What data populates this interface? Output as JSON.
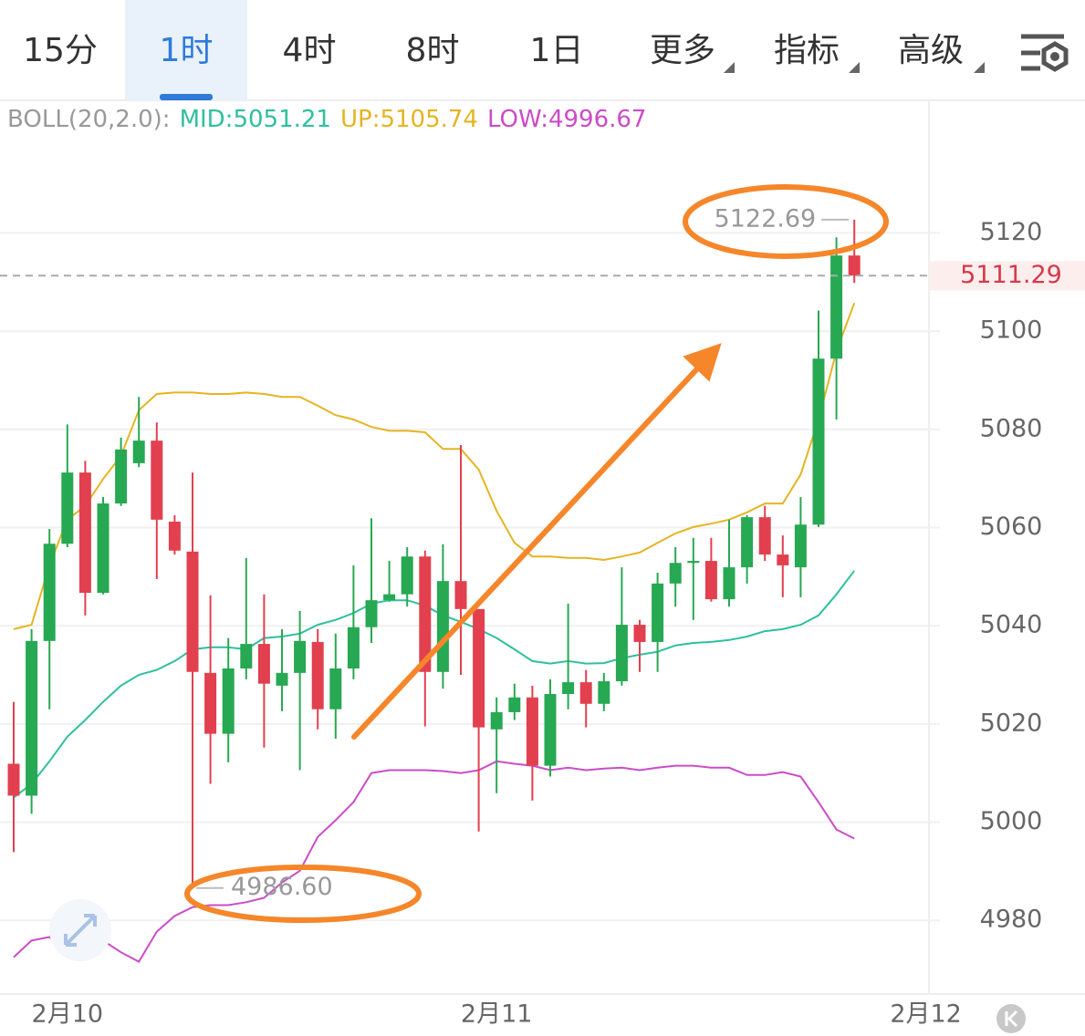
{
  "tabs": {
    "items": [
      "15分",
      "1时",
      "4时",
      "8时",
      "1日",
      "更多",
      "指标",
      "高级"
    ],
    "active": 1
  },
  "chart_data": {
    "type": "candlestick",
    "indicator": "BOLL(20,2.0):",
    "categories": [
      null,
      null,
      null,
      "2月10",
      null,
      null,
      null,
      null,
      null,
      null,
      null,
      null,
      null,
      null,
      null,
      null,
      null,
      null,
      null,
      null,
      null,
      null,
      null,
      null,
      null,
      null,
      null,
      "2月11",
      null,
      null,
      null,
      null,
      null,
      null,
      null,
      null,
      null,
      null,
      null,
      null,
      null,
      null,
      null,
      null,
      null,
      null,
      null,
      null,
      null,
      null,
      null,
      "2月12"
    ],
    "open": [
      5011.9,
      5005.4,
      5036.9,
      5056.7,
      5071.2,
      5046.7,
      5064.9,
      5073.1,
      5077.7,
      5061.2,
      5055.1,
      5030.4,
      5018,
      5031.3,
      5036.3,
      5027.8,
      5030.4,
      5036.7,
      5023,
      5031.3,
      5039.7,
      5045.2,
      5046.4,
      5054.1,
      5030.6,
      5049.1,
      5043.4,
      5018.9,
      5022.4,
      5025.4,
      5011.5,
      5026.1,
      5028.5,
      5024.1,
      5028.7,
      5040.2,
      5036.7,
      5048.6,
      5052.8,
      5053.2,
      5045.4,
      5051.9,
      5062.1,
      5054.5,
      5051.9,
      5060.6,
      5094.4,
      5115.4,
      null,
      null,
      null,
      null
    ],
    "high": [
      5024.5,
      5039.3,
      5059.7,
      5081,
      5073.6,
      5066.2,
      5078.3,
      5086.6,
      5081.4,
      5062.5,
      5071.2,
      5046.2,
      5037.5,
      5053.8,
      5046.4,
      5039.3,
      5043,
      5039.3,
      5038.4,
      5052.3,
      5061.9,
      5053.2,
      5056,
      5055.3,
      5056.6,
      5076.8,
      5043.4,
      5025.4,
      5028.2,
      5027.8,
      5029.1,
      5044.5,
      5031,
      5030.4,
      5051.9,
      5041.2,
      5050.8,
      5056,
      5057.9,
      5057.9,
      5061.6,
      5062.5,
      5064.4,
      5058.4,
      5066.2,
      5104.2,
      5119.1,
      5122.69,
      null,
      null,
      null,
      null
    ],
    "low": [
      4993.9,
      5001.7,
      5023,
      5056,
      5042.1,
      5046.4,
      5064.4,
      5072.3,
      5049.5,
      5054.5,
      4986.6,
      5007.8,
      5012.2,
      5029.1,
      5015.2,
      5022.6,
      5010.6,
      5018.9,
      5017,
      5029.1,
      5036.5,
      5044.9,
      5043.9,
      5019.5,
      5027.2,
      5030,
      4998.1,
      5005.9,
      5020.8,
      5004.4,
      5009.3,
      5023,
      5019.3,
      5022.6,
      5027.8,
      5030.6,
      5030.6,
      5043.9,
      5041.2,
      5044.9,
      5043.9,
      5048.6,
      5053.2,
      5045.8,
      5045.8,
      5060.1,
      5082,
      5109.8,
      null,
      null,
      null,
      null
    ],
    "close": [
      5005.4,
      5036.9,
      5056.7,
      5071.2,
      5046.7,
      5064.9,
      5075.9,
      5077.7,
      5061.6,
      5055.3,
      5030.6,
      5018,
      5031.3,
      5036.3,
      5028.2,
      5030.4,
      5036.9,
      5023,
      5031.3,
      5039.7,
      5045.2,
      5046.4,
      5054.1,
      5030.6,
      5049.1,
      5043.4,
      5019.3,
      5022.4,
      5025.4,
      5011.5,
      5026.1,
      5028.5,
      5024.1,
      5028.7,
      5040.2,
      5036.7,
      5048.6,
      5052.8,
      5053.2,
      5045.4,
      5051.9,
      5062.1,
      5054.5,
      5052.3,
      5060.6,
      5094.4,
      5115.4,
      5111.29,
      null,
      null,
      null,
      null
    ],
    "up_color": "#27a852",
    "down_color": "#e2404f",
    "series": [
      {
        "name": "MID:",
        "color": "#2fbf9f",
        "values": [
          5005,
          5007.8,
          5012.4,
          5017.4,
          5020.8,
          5024.5,
          5027.8,
          5030,
          5031,
          5032.8,
          5035.2,
          5035.6,
          5035.6,
          5035.2,
          5037.5,
          5037.8,
          5038.4,
          5040.2,
          5041.2,
          5042.6,
          5044.5,
          5045.2,
          5045.2,
          5044.1,
          5042.1,
          5040.8,
          5039.3,
          5037.5,
          5035.2,
          5032.8,
          5032.3,
          5032.8,
          5032.3,
          5032.4,
          5033.4,
          5034.1,
          5034.7,
          5036,
          5036.5,
          5036.7,
          5037.1,
          5037.8,
          5038.9,
          5039.3,
          5040.2,
          5042.1,
          5046.4,
          5051.21,
          null,
          null,
          null,
          null
        ]
      },
      {
        "name": "UP:",
        "color": "#e6b422",
        "values": [
          5039.3,
          5040.2,
          5052.3,
          5061.6,
          5064.4,
          5069.9,
          5074.6,
          5083.9,
          5087.2,
          5087.5,
          5087.5,
          5087.2,
          5087.2,
          5087.5,
          5087.2,
          5086.6,
          5086.6,
          5084.8,
          5082.9,
          5082,
          5080.5,
          5079.7,
          5079.7,
          5079.4,
          5076,
          5076,
          5071.8,
          5063.4,
          5056.9,
          5054.1,
          5054.1,
          5053.8,
          5053.8,
          5053.4,
          5054.1,
          5054.9,
          5056.9,
          5058.8,
          5060.1,
          5060.8,
          5061.6,
          5063.1,
          5064.9,
          5064.9,
          5070.8,
          5082,
          5095.9,
          5105.74,
          null,
          null,
          null,
          null
        ]
      },
      {
        "name": "LOW:",
        "color": "#cc4bc8",
        "values": [
          4972.5,
          4975.9,
          4976.6,
          4973.1,
          4974.4,
          4975.9,
          4973.5,
          4971.6,
          4977.7,
          4980.9,
          4982.7,
          4983.1,
          4983.1,
          4983.7,
          4984.6,
          4987.7,
          4990.1,
          4997,
          5000.4,
          5004.1,
          5010,
          5010.6,
          5010.6,
          5010.6,
          5010.4,
          5010,
          5010.6,
          5012.4,
          5011.9,
          5011.5,
          5010.6,
          5011.1,
          5010.6,
          5010.9,
          5011.1,
          5010.6,
          5011.1,
          5011.5,
          5011.5,
          5011.1,
          5011.1,
          5009.6,
          5009.6,
          5010.2,
          5009.3,
          5004.1,
          4998.5,
          4996.67,
          null,
          null,
          null,
          null
        ]
      }
    ],
    "ylim": [
      4965,
      5147
    ],
    "yticks": [
      4980,
      5000,
      5020,
      5040,
      5060,
      5080,
      5100,
      5120
    ],
    "grid": true,
    "annotations": [
      {
        "value": 5122.69,
        "label": "5122.69"
      },
      {
        "value": 4986.6,
        "label": "4986.60"
      }
    ]
  }
}
